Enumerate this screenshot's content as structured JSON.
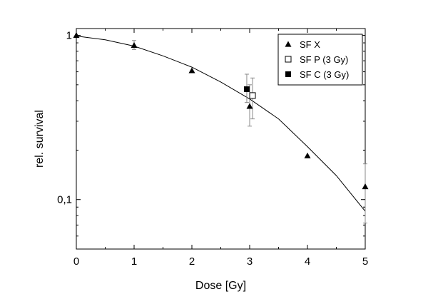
{
  "chart_data": {
    "type": "scatter",
    "xlabel": "Dose [Gy]",
    "ylabel": "rel. survival",
    "xlim": [
      0,
      5
    ],
    "ylim": [
      0.05,
      1.1
    ],
    "yscale": "log",
    "grid": false,
    "legend_position": "top-right",
    "x_ticks": [
      0,
      1,
      2,
      3,
      4,
      5
    ],
    "x_tick_labels": [
      "0",
      "1",
      "2",
      "3",
      "4",
      "5"
    ],
    "y_ticks": [
      1,
      0.1
    ],
    "y_tick_labels": [
      "1",
      "0,1"
    ],
    "series": [
      {
        "name": "SF X",
        "marker": "triangle-filled",
        "points": [
          {
            "x": 0,
            "y": 1.0
          },
          {
            "x": 1,
            "y": 0.87,
            "err_low": 0.82,
            "err_high": 0.93
          },
          {
            "x": 2,
            "y": 0.61
          },
          {
            "x": 3,
            "y": 0.37,
            "err_low": 0.28,
            "err_high": 0.5
          },
          {
            "x": 4,
            "y": 0.185
          },
          {
            "x": 5,
            "y": 0.12,
            "err_low": 0.072,
            "err_high": 0.165
          }
        ]
      },
      {
        "name": "SF P (3 Gy)",
        "marker": "square-open",
        "points": [
          {
            "x": 3.05,
            "y": 0.43,
            "err_low": 0.31,
            "err_high": 0.55
          }
        ]
      },
      {
        "name": "SF C (3 Gy)",
        "marker": "square-filled",
        "points": [
          {
            "x": 2.95,
            "y": 0.47,
            "err_low": 0.39,
            "err_high": 0.58
          }
        ]
      }
    ],
    "fit_curve": {
      "x": [
        0,
        0.5,
        1,
        1.5,
        2,
        2.5,
        3,
        3.5,
        4,
        4.5,
        5
      ],
      "y": [
        0.99,
        0.94,
        0.86,
        0.75,
        0.64,
        0.52,
        0.41,
        0.31,
        0.21,
        0.14,
        0.085
      ]
    },
    "colors": {
      "marker": "#000000",
      "axis": "#000000",
      "line": "#000000",
      "error_bar": "#888888"
    }
  }
}
